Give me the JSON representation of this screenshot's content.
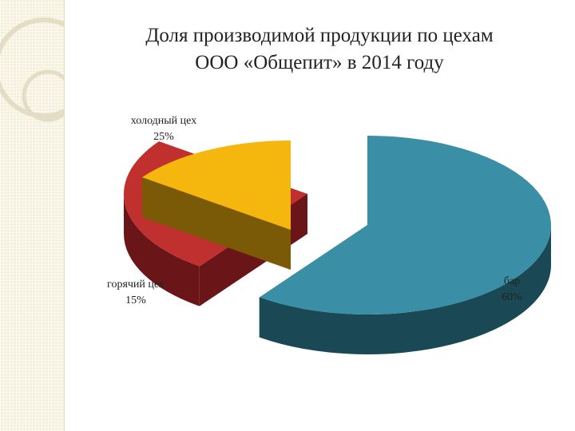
{
  "title": {
    "line1": "Доля производимой продукции по цехам",
    "line2": "ООО «Общепит» в 2014 году"
  },
  "colors": {
    "холодный цех": {
      "top": "#c0302f",
      "side": "#6a1518"
    },
    "горячий цех": {
      "top": "#f5b60d",
      "side": "#7a5a06"
    },
    "бар": {
      "top": "#3a8fa6",
      "side": "#1a4854"
    }
  },
  "chart_data": {
    "type": "pie",
    "title": "Доля производимой продукции по цехам ООО «Общепит» в 2014 году",
    "categories": [
      "бар",
      "холодный цех",
      "горячий цех"
    ],
    "values": [
      60,
      25,
      15
    ],
    "value_labels": [
      "60%",
      "25%",
      "15%"
    ],
    "exploded": true,
    "style": "3d"
  }
}
